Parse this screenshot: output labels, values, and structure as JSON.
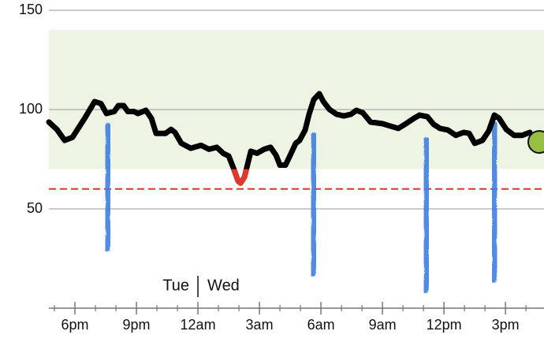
{
  "chart_data": {
    "type": "line",
    "xlim": [
      16.73,
      40.88
    ],
    "xticks": [
      {
        "value": 18,
        "label": "6pm"
      },
      {
        "value": 21,
        "label": "9pm"
      },
      {
        "value": 24,
        "label": "12am"
      },
      {
        "value": 27,
        "label": "3am"
      },
      {
        "value": 30,
        "label": "6am"
      },
      {
        "value": 33,
        "label": "9am"
      },
      {
        "value": 36,
        "label": "12pm"
      },
      {
        "value": 39,
        "label": "3pm"
      }
    ],
    "minor_xticks": [
      17,
      19,
      20,
      22,
      23,
      25,
      26,
      28,
      29,
      31,
      32,
      34,
      35,
      37,
      38,
      40
    ],
    "ylim": [
      0,
      150
    ],
    "yticks": [
      50,
      100,
      150
    ],
    "grid": true,
    "day_labels": [
      "Tue",
      "Wed"
    ],
    "target_range": [
      70,
      140
    ],
    "target_color": "#eef4e4",
    "low_line": 60,
    "low_line_color": "#d9372b",
    "series": [
      {
        "color": "#000000",
        "low_color": "#e0392b",
        "x": [
          16.73,
          17.12,
          17.5,
          17.88,
          18.19,
          18.5,
          18.96,
          19.27,
          19.54,
          19.92,
          20.12,
          20.38,
          20.58,
          20.88,
          21.08,
          21.46,
          21.73,
          21.96,
          22.42,
          22.69,
          22.88,
          23.19,
          23.65,
          24.15,
          24.54,
          24.92,
          25.23,
          25.5,
          25.73,
          25.96,
          26.08,
          26.27,
          26.38,
          26.58,
          26.88,
          27.23,
          27.54,
          27.81,
          28,
          28.27,
          28.5,
          28.77,
          28.96,
          29.23,
          29.42,
          29.65,
          29.92,
          30.12,
          30.42,
          30.77,
          31.12,
          31.46,
          31.73,
          32.04,
          32.42,
          33,
          33.38,
          33.77,
          34.15,
          34.54,
          34.81,
          35.19,
          35.5,
          35.81,
          36.19,
          36.58,
          36.96,
          37.23,
          37.5,
          37.88,
          38.19,
          38.46,
          38.69,
          39.04,
          39.42,
          39.81,
          40.19
        ],
        "values": [
          93.7,
          90,
          84.5,
          86,
          91,
          96,
          104,
          103,
          98,
          99,
          102,
          102,
          99,
          99,
          98,
          99.6,
          95.6,
          88,
          88,
          90,
          88.5,
          83,
          80.5,
          82,
          80,
          81,
          78,
          76.6,
          70.6,
          64,
          63,
          66,
          70.6,
          79,
          78,
          80,
          81,
          77,
          72,
          72,
          77,
          83,
          84.5,
          89.7,
          97.6,
          105,
          108,
          104,
          100,
          97.6,
          96.8,
          97.6,
          99.6,
          98.4,
          93.7,
          92.9,
          91.7,
          90.5,
          92.9,
          95.6,
          97.2,
          96.4,
          92.5,
          90.5,
          89.7,
          87,
          88.5,
          88,
          83,
          84.5,
          89.3,
          97.2,
          95.6,
          90,
          87,
          87,
          88.5
        ]
      }
    ],
    "current": {
      "x": 40.65,
      "value": 83.7,
      "color": "#97c043"
    },
    "entries": {
      "color": "#3f7fe0",
      "x": [
        19.61,
        29.65,
        35.15,
        38.46
      ],
      "top": [
        91.7,
        86.9,
        84.5,
        92.5
      ],
      "bottom": [
        30,
        17.5,
        9.1,
        14.3
      ]
    }
  }
}
